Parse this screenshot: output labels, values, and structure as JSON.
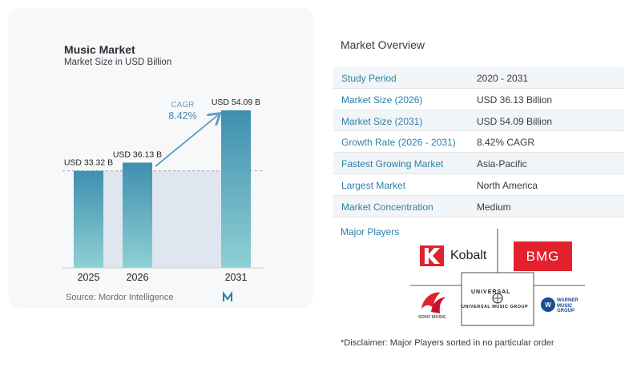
{
  "chart_data": {
    "type": "bar",
    "title": "Music Market",
    "subtitle": "Market Size in USD Billion",
    "categories": [
      "2025",
      "2026",
      "2031"
    ],
    "values": [
      33.32,
      36.13,
      54.09
    ],
    "data_labels": [
      "USD 33.32 B",
      "USD 36.13 B",
      "USD 54.09 B"
    ],
    "cagr_label": "CAGR",
    "cagr_value": "8.42%",
    "source": "Source:  Mordor Intelligence",
    "colors": {
      "bar_top": "#3f8fb0",
      "bar_bottom": "#8fd0d3",
      "band": "#dfe6ef",
      "arrow": "#5e9cc4"
    }
  },
  "overview": {
    "title": "Market Overview",
    "rows": [
      {
        "label": "Study Period",
        "value": "2020 - 2031"
      },
      {
        "label": "Market Size (2026)",
        "value": "USD 36.13 Billion"
      },
      {
        "label": "Market Size (2031)",
        "value": "USD 54.09 Billion"
      },
      {
        "label": "Growth Rate (2026 - 2031)",
        "value": "8.42% CAGR"
      },
      {
        "label": "Fastest Growing Market",
        "value": "Asia-Pacific"
      },
      {
        "label": "Largest Market",
        "value": "North America"
      },
      {
        "label": "Market Concentration",
        "value": "Medium"
      }
    ]
  },
  "players": {
    "label": "Major Players",
    "logos": {
      "kobalt": "Kobalt",
      "bmg": "BMG",
      "sony": "SONY MUSIC",
      "umg_top": "UNIVERSAL",
      "umg_bottom": "UNIVERSAL MUSIC GROUP",
      "warner": "WARNER MUSIC GROUP"
    }
  },
  "disclaimer": "*Disclaimer: Major Players sorted in no particular order"
}
